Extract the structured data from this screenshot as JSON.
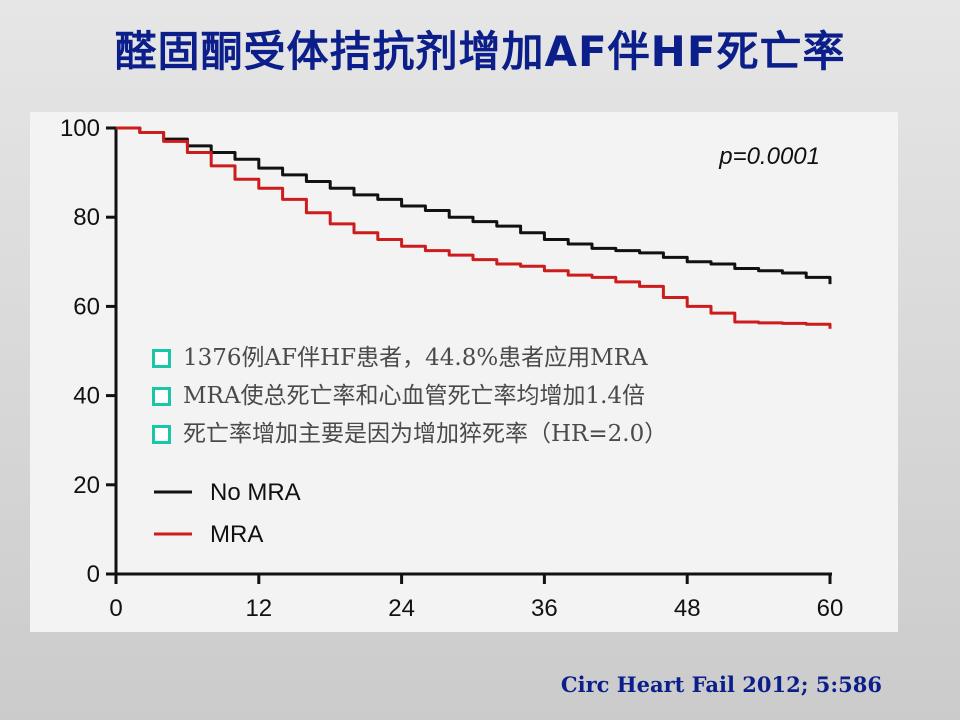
{
  "slide": {
    "title": "醛固酮受体拮抗剂增加AF伴HF死亡率",
    "citation": "Circ Heart Fail 2012; 5:586",
    "bullets": [
      "1376例AF伴HF患者，44.8%患者应用MRA",
      "MRA使总死亡率和心血管死亡率均增加1.4倍",
      "死亡率增加主要是因为增加猝死率（HR=2.0）"
    ],
    "bullet_color": "#19c7a6",
    "title_color": "#0b1e8a"
  },
  "chart_data": {
    "type": "line",
    "title": "",
    "xlabel": "",
    "ylabel": "",
    "xlim": [
      0,
      60
    ],
    "ylim": [
      0,
      100
    ],
    "x_ticks": [
      0,
      12,
      24,
      36,
      48,
      60
    ],
    "y_ticks": [
      0,
      20,
      40,
      60,
      80,
      100
    ],
    "annotation": "p=0.0001",
    "legend_position": "bottom-left",
    "series": [
      {
        "name": "No MRA",
        "color": "#111111",
        "x": [
          0,
          2,
          4,
          6,
          8,
          10,
          12,
          14,
          16,
          18,
          20,
          22,
          24,
          26,
          28,
          30,
          32,
          34,
          36,
          38,
          40,
          42,
          44,
          46,
          48,
          50,
          52,
          54,
          56,
          58,
          60
        ],
        "y": [
          100,
          99,
          97.5,
          96,
          94.5,
          93,
          91,
          89.5,
          88,
          86.5,
          85,
          84,
          82.5,
          81.5,
          80,
          79,
          78,
          76.5,
          75,
          74,
          73,
          72.5,
          72,
          71,
          70,
          69.5,
          68.5,
          68,
          67.5,
          66.5,
          65
        ]
      },
      {
        "name": "MRA",
        "color": "#cc1c1c",
        "x": [
          0,
          2,
          4,
          6,
          8,
          10,
          12,
          14,
          16,
          18,
          20,
          22,
          24,
          26,
          28,
          30,
          32,
          34,
          36,
          38,
          40,
          42,
          44,
          46,
          48,
          50,
          52,
          54,
          56,
          58,
          60
        ],
        "y": [
          100,
          99,
          97,
          94.5,
          91.5,
          88.5,
          86.5,
          84,
          81,
          78.5,
          76.5,
          75,
          73.5,
          72.5,
          71.5,
          70.5,
          69.5,
          69,
          68,
          67,
          66.5,
          65.5,
          64.5,
          62,
          60,
          58.5,
          56.5,
          56.3,
          56.2,
          56,
          55
        ]
      }
    ]
  }
}
